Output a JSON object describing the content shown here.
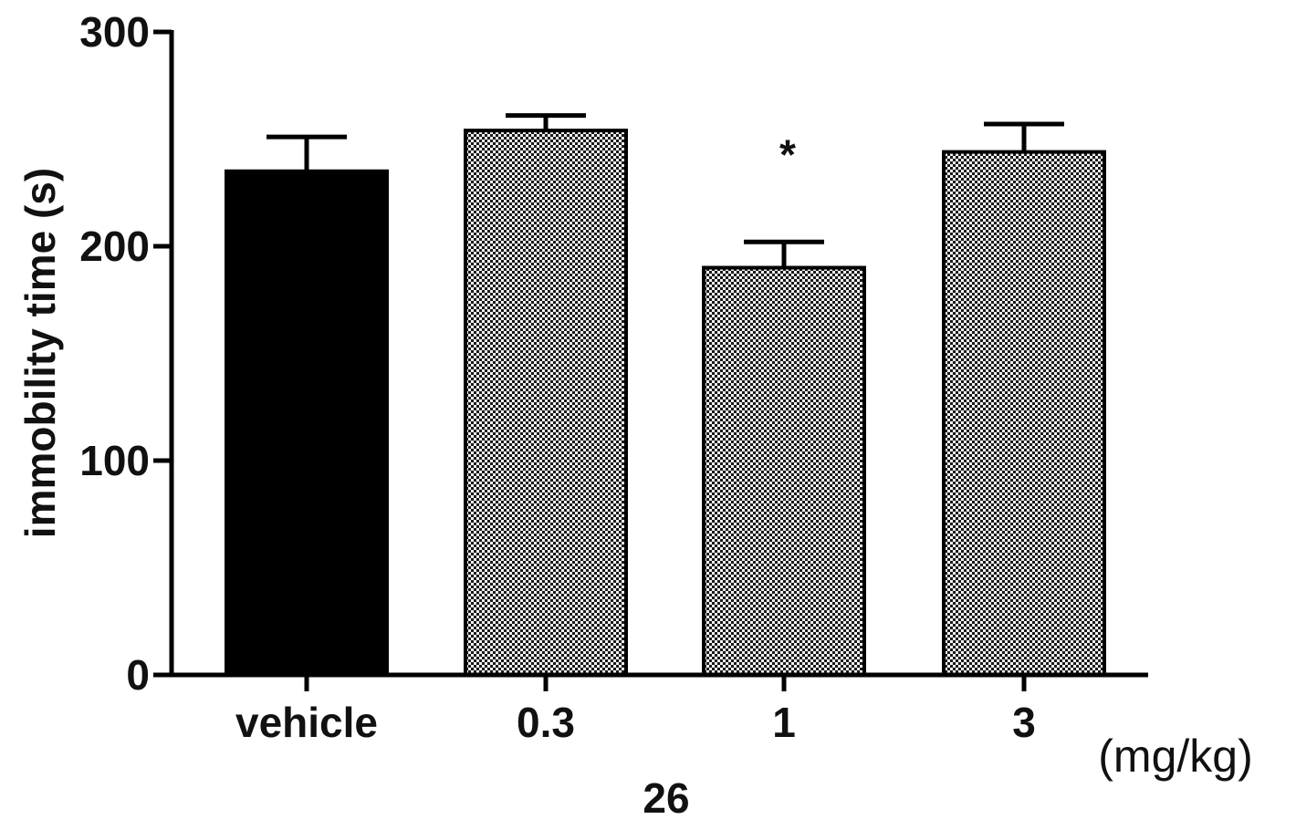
{
  "chart_data": {
    "type": "bar",
    "categories": [
      "vehicle",
      "0.3",
      "1",
      "3"
    ],
    "values": [
      235,
      254,
      190,
      244
    ],
    "error_upper": [
      251,
      261,
      202,
      257
    ],
    "significance": [
      "",
      "",
      "*",
      ""
    ],
    "fills": [
      "solid",
      "checker",
      "checker",
      "checker"
    ],
    "ylabel": "immobility time (s)",
    "xlabel": "26",
    "unit_label": "(mg/kg)",
    "ylim": [
      0,
      300
    ],
    "yticks": [
      0,
      100,
      200,
      300
    ],
    "ytick_labels": [
      "0",
      "100",
      "200",
      "300"
    ],
    "grid": false,
    "colors": {
      "solid": "#000000",
      "checker_dark": "#1a1a1a",
      "checker_light": "#f2f2f2",
      "axis": "#000000"
    }
  }
}
